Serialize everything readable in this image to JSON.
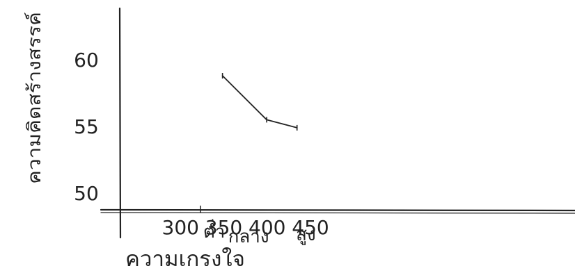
{
  "chart_data": {
    "type": "line",
    "title": "",
    "xlabel": "ความเกรงใจ",
    "ylabel": "ความคิดสร้างสรรค์",
    "x_ticks": [
      300,
      350,
      400,
      450
    ],
    "y_ticks": [
      50,
      55,
      60
    ],
    "x_category_labels": [
      {
        "x": 327,
        "label": "ต่ำ"
      },
      {
        "x": 378,
        "label": "กลาง"
      },
      {
        "x": 412,
        "label": "สูง"
      }
    ],
    "series": [
      {
        "x": [
          327,
          378,
          413
        ],
        "y": [
          58.8,
          55.5,
          54.9
        ]
      }
    ],
    "xlim": [
      255,
      500
    ],
    "ylim": [
      48.5,
      63.5
    ],
    "grid": false,
    "legend": "none",
    "colors": {
      "ink": "#222222",
      "background": "#ffffff"
    }
  }
}
